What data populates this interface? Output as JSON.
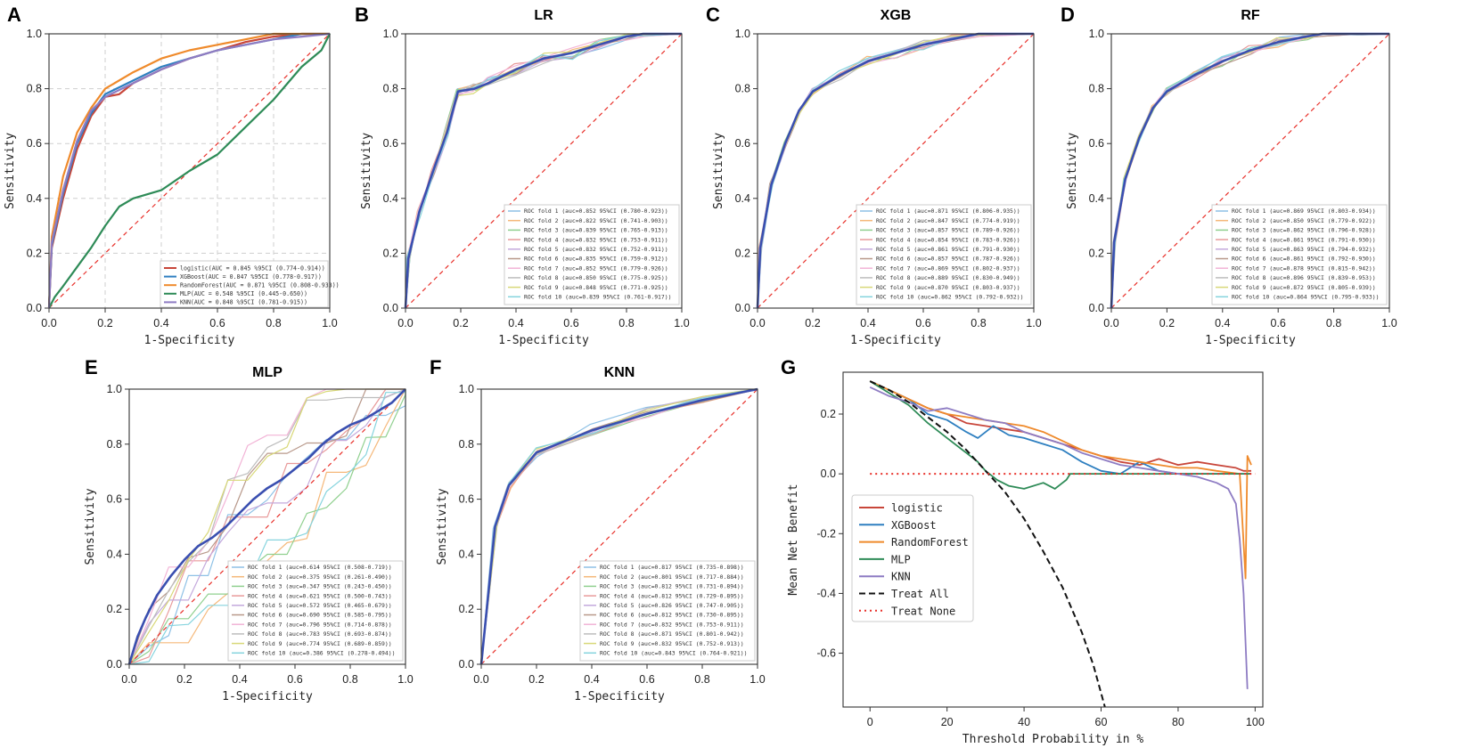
{
  "panel_letters": [
    "A",
    "B",
    "C",
    "D",
    "E",
    "F",
    "G"
  ],
  "axis_labels": {
    "roc_x": "1-Specificity",
    "roc_y": "Sensitivity",
    "dca_x": "Threshold Probability in %",
    "dca_y": "Mean Net Benefit"
  },
  "roc_ticks": [
    "0.0",
    "0.2",
    "0.4",
    "0.6",
    "0.8",
    "1.0"
  ],
  "dca_x_ticks": [
    "0",
    "20",
    "40",
    "60",
    "80",
    "100"
  ],
  "dca_y_ticks": [
    "0.2",
    "0.0",
    "-0.2",
    "-0.4",
    "-0.6"
  ],
  "colors": {
    "logistic": "#c8463a",
    "xgboost": "#2e7fc0",
    "randomforest": "#ef8a2b",
    "mlp": "#2e8b57",
    "knn": "#8e7cc3",
    "mean": "#3a4fb0",
    "diagonal": "#e8302a",
    "treat_all": "#111111",
    "treat_none": "#e8302a",
    "fold_colors": [
      "#8ec1e6",
      "#f5b87a",
      "#90d08f",
      "#e89a9a",
      "#c4a9dc",
      "#b8988a",
      "#f2b3d6",
      "#bdbdbd",
      "#d8d878",
      "#86d4de"
    ]
  },
  "chart_data": [
    {
      "panel": "A",
      "type": "line",
      "title": "",
      "xlabel": "1-Specificity",
      "ylabel": "Sensitivity",
      "xlim": [
        0,
        1
      ],
      "ylim": [
        0,
        1
      ],
      "grid": true,
      "series": [
        {
          "name": "logistic",
          "label": "logistic(AUC = 0.845 %95CI (0.774-0.914))",
          "color_key": "logistic",
          "x": [
            0,
            0.01,
            0.05,
            0.1,
            0.15,
            0.2,
            0.25,
            0.3,
            0.4,
            0.5,
            0.6,
            0.7,
            0.8,
            0.9,
            1.0
          ],
          "y": [
            0,
            0.22,
            0.4,
            0.58,
            0.7,
            0.77,
            0.78,
            0.82,
            0.87,
            0.91,
            0.94,
            0.97,
            0.99,
            1.0,
            1.0
          ]
        },
        {
          "name": "XGBoost",
          "label": "XGBoost(AUC = 0.847 %95CI (0.778-0.917))",
          "color_key": "xgboost",
          "x": [
            0,
            0.01,
            0.05,
            0.1,
            0.15,
            0.2,
            0.3,
            0.4,
            0.5,
            0.6,
            0.7,
            0.8,
            0.9,
            1.0
          ],
          "y": [
            0,
            0.23,
            0.42,
            0.6,
            0.71,
            0.78,
            0.83,
            0.88,
            0.91,
            0.94,
            0.96,
            0.98,
            1.0,
            1.0
          ]
        },
        {
          "name": "RandomForest",
          "label": "RandomForest(AUC = 0.871 %95CI (0.808-0.933))",
          "color_key": "randomforest",
          "x": [
            0,
            0.01,
            0.05,
            0.1,
            0.15,
            0.2,
            0.3,
            0.4,
            0.5,
            0.6,
            0.7,
            0.8,
            0.9,
            1.0
          ],
          "y": [
            0,
            0.26,
            0.48,
            0.64,
            0.73,
            0.8,
            0.86,
            0.91,
            0.94,
            0.96,
            0.98,
            1.0,
            1.0,
            1.0
          ]
        },
        {
          "name": "MLP",
          "label": "MLP(AUC = 0.548 %95CI (0.445-0.650))",
          "color_key": "mlp",
          "x": [
            0,
            0.02,
            0.05,
            0.1,
            0.15,
            0.2,
            0.25,
            0.3,
            0.4,
            0.5,
            0.6,
            0.7,
            0.8,
            0.9,
            0.97,
            1.0
          ],
          "y": [
            0,
            0.04,
            0.08,
            0.15,
            0.22,
            0.3,
            0.37,
            0.4,
            0.43,
            0.5,
            0.56,
            0.66,
            0.76,
            0.88,
            0.94,
            1.0
          ]
        },
        {
          "name": "KNN",
          "label": "KNN(AUC = 0.848 %95CI (0.781-0.915))",
          "color_key": "knn",
          "x": [
            0,
            0.01,
            0.05,
            0.1,
            0.15,
            0.2,
            0.3,
            0.4,
            0.5,
            0.6,
            0.7,
            0.8,
            0.9,
            1.0
          ],
          "y": [
            0,
            0.24,
            0.43,
            0.61,
            0.72,
            0.77,
            0.82,
            0.87,
            0.91,
            0.94,
            0.96,
            0.98,
            0.99,
            1.0
          ]
        }
      ]
    },
    {
      "panel": "B",
      "type": "line",
      "title": "LR",
      "xlabel": "1-Specificity",
      "ylabel": "Sensitivity",
      "xlim": [
        0,
        1
      ],
      "ylim": [
        0,
        1
      ],
      "folds": [
        "ROC fold 1 (auc=0.852 95%CI (0.780-0.923))",
        "ROC fold 2 (auc=0.822 95%CI (0.741-0.903))",
        "ROC fold 3 (auc=0.839 95%CI (0.765-0.913))",
        "ROC fold 4 (auc=0.832 95%CI (0.753-0.911))",
        "ROC fold 5 (auc=0.832 95%CI (0.752-0.911))",
        "ROC fold 6 (auc=0.835 95%CI (0.759-0.912))",
        "ROC fold 7 (auc=0.852 95%CI (0.779-0.926))",
        "ROC fold 8 (auc=0.850 95%CI (0.775-0.925))",
        "ROC fold 9 (auc=0.848 95%CI (0.771-0.925))",
        "ROC fold 10 (auc=0.839 95%CI (0.761-0.917))"
      ],
      "mean_x": [
        0,
        0.01,
        0.05,
        0.1,
        0.15,
        0.19,
        0.25,
        0.3,
        0.4,
        0.5,
        0.6,
        0.7,
        0.8,
        0.86,
        1.0
      ],
      "mean_y": [
        0,
        0.18,
        0.35,
        0.5,
        0.64,
        0.79,
        0.8,
        0.82,
        0.87,
        0.91,
        0.93,
        0.96,
        0.99,
        1.0,
        1.0
      ]
    },
    {
      "panel": "C",
      "type": "line",
      "title": "XGB",
      "xlabel": "1-Specificity",
      "ylabel": "Sensitivity",
      "xlim": [
        0,
        1
      ],
      "ylim": [
        0,
        1
      ],
      "folds": [
        "ROC fold 1 (auc=0.871 95%CI (0.806-0.935))",
        "ROC fold 2 (auc=0.847 95%CI (0.774-0.919))",
        "ROC fold 3 (auc=0.857 95%CI (0.789-0.926))",
        "ROC fold 4 (auc=0.854 95%CI (0.783-0.926))",
        "ROC fold 5 (auc=0.861 95%CI (0.791-0.930))",
        "ROC fold 6 (auc=0.857 95%CI (0.787-0.926))",
        "ROC fold 7 (auc=0.869 95%CI (0.802-0.937))",
        "ROC fold 8 (auc=0.889 95%CI (0.830-0.949))",
        "ROC fold 9 (auc=0.870 95%CI (0.803-0.937))",
        "ROC fold 10 (auc=0.862 95%CI (0.792-0.932))"
      ],
      "mean_x": [
        0,
        0.01,
        0.05,
        0.1,
        0.15,
        0.2,
        0.3,
        0.4,
        0.5,
        0.6,
        0.7,
        0.8,
        0.9,
        1.0
      ],
      "mean_y": [
        0,
        0.22,
        0.45,
        0.6,
        0.72,
        0.79,
        0.85,
        0.9,
        0.93,
        0.96,
        0.98,
        1.0,
        1.0,
        1.0
      ]
    },
    {
      "panel": "D",
      "type": "line",
      "title": "RF",
      "xlabel": "1-Specificity",
      "ylabel": "Sensitivity",
      "xlim": [
        0,
        1
      ],
      "ylim": [
        0,
        1
      ],
      "folds": [
        "ROC fold 1 (auc=0.869 95%CI (0.803-0.934))",
        "ROC fold 2 (auc=0.850 95%CI (0.779-0.922))",
        "ROC fold 3 (auc=0.862 95%CI (0.796-0.928))",
        "ROC fold 4 (auc=0.861 95%CI (0.791-0.930))",
        "ROC fold 5 (auc=0.863 95%CI (0.794-0.932))",
        "ROC fold 6 (auc=0.861 95%CI (0.792-0.930))",
        "ROC fold 7 (auc=0.878 95%CI (0.815-0.942))",
        "ROC fold 8 (auc=0.896 95%CI (0.839-0.953))",
        "ROC fold 9 (auc=0.872 95%CI (0.805-0.939))",
        "ROC fold 10 (auc=0.864 95%CI (0.795-0.933))"
      ],
      "mean_x": [
        0,
        0.01,
        0.05,
        0.1,
        0.15,
        0.2,
        0.3,
        0.4,
        0.5,
        0.6,
        0.7,
        0.76,
        0.9,
        1.0
      ],
      "mean_y": [
        0,
        0.24,
        0.47,
        0.62,
        0.73,
        0.79,
        0.85,
        0.9,
        0.94,
        0.97,
        0.99,
        1.0,
        1.0,
        1.0
      ]
    },
    {
      "panel": "E",
      "type": "line",
      "title": "MLP",
      "xlabel": "1-Specificity",
      "ylabel": "Sensitivity",
      "xlim": [
        0,
        1
      ],
      "ylim": [
        0,
        1
      ],
      "folds": [
        "ROC fold 1 (auc=0.614 95%CI (0.508-0.719))",
        "ROC fold 2 (auc=0.375 95%CI (0.261-0.490))",
        "ROC fold 3 (auc=0.347 95%CI (0.243-0.450))",
        "ROC fold 4 (auc=0.621 95%CI (0.500-0.743))",
        "ROC fold 5 (auc=0.572 95%CI (0.465-0.679))",
        "ROC fold 6 (auc=0.690 95%CI (0.585-0.795))",
        "ROC fold 7 (auc=0.796 95%CI (0.714-0.878))",
        "ROC fold 8 (auc=0.783 95%CI (0.693-0.874))",
        "ROC fold 9 (auc=0.774 95%CI (0.689-0.859))",
        "ROC fold 10 (auc=0.386 95%CI (0.278-0.494))"
      ],
      "mean_x": [
        0,
        0.03,
        0.06,
        0.1,
        0.15,
        0.2,
        0.25,
        0.3,
        0.35,
        0.4,
        0.45,
        0.5,
        0.55,
        0.6,
        0.65,
        0.7,
        0.75,
        0.8,
        0.85,
        0.9,
        0.95,
        1.0
      ],
      "mean_y": [
        0,
        0.1,
        0.17,
        0.25,
        0.32,
        0.38,
        0.43,
        0.46,
        0.5,
        0.55,
        0.6,
        0.64,
        0.67,
        0.71,
        0.75,
        0.8,
        0.84,
        0.87,
        0.89,
        0.92,
        0.95,
        1.0
      ]
    },
    {
      "panel": "F",
      "type": "line",
      "title": "KNN",
      "xlabel": "1-Specificity",
      "ylabel": "Sensitivity",
      "xlim": [
        0,
        1
      ],
      "ylim": [
        0,
        1
      ],
      "folds": [
        "ROC fold 1 (auc=0.817 95%CI (0.735-0.898))",
        "ROC fold 2 (auc=0.801 95%CI (0.717-0.884))",
        "ROC fold 3 (auc=0.812 95%CI (0.731-0.894))",
        "ROC fold 4 (auc=0.812 95%CI (0.729-0.895))",
        "ROC fold 5 (auc=0.826 95%CI (0.747-0.905))",
        "ROC fold 6 (auc=0.812 95%CI (0.730-0.895))",
        "ROC fold 7 (auc=0.832 95%CI (0.753-0.911))",
        "ROC fold 8 (auc=0.871 95%CI (0.801-0.942))",
        "ROC fold 9 (auc=0.832 95%CI (0.752-0.913))",
        "ROC fold 10 (auc=0.843 95%CI (0.764-0.921))"
      ],
      "mean_x": [
        0,
        0.05,
        0.1,
        0.2,
        0.4,
        0.6,
        0.8,
        1.0
      ],
      "mean_y": [
        0,
        0.5,
        0.65,
        0.77,
        0.85,
        0.91,
        0.96,
        1.0
      ]
    },
    {
      "panel": "G",
      "type": "line",
      "title": "",
      "xlabel": "Threshold Probability in %",
      "ylabel": "Mean Net Benefit",
      "xlim": [
        -7,
        102
      ],
      "ylim": [
        -0.78,
        0.34
      ],
      "series": [
        {
          "name": "logistic",
          "color_key": "logistic",
          "x": [
            0,
            5,
            10,
            15,
            20,
            25,
            30,
            35,
            40,
            45,
            50,
            55,
            60,
            65,
            70,
            75,
            80,
            85,
            90,
            95,
            97,
            99
          ],
          "y": [
            0.31,
            0.28,
            0.25,
            0.22,
            0.2,
            0.17,
            0.16,
            0.15,
            0.14,
            0.12,
            0.1,
            0.08,
            0.06,
            0.04,
            0.03,
            0.05,
            0.03,
            0.04,
            0.03,
            0.02,
            0.01,
            0.01
          ]
        },
        {
          "name": "XGBoost",
          "color_key": "xgboost",
          "x": [
            0,
            5,
            10,
            15,
            20,
            25,
            28,
            32,
            36,
            40,
            45,
            50,
            55,
            60,
            65,
            70,
            75,
            80,
            85,
            99
          ],
          "y": [
            0.31,
            0.28,
            0.25,
            0.2,
            0.18,
            0.14,
            0.12,
            0.16,
            0.13,
            0.12,
            0.1,
            0.08,
            0.04,
            0.01,
            0.0,
            0.04,
            0.01,
            0.0,
            0.0,
            0.0
          ]
        },
        {
          "name": "RandomForest",
          "color_key": "randomforest",
          "x": [
            0,
            5,
            10,
            15,
            20,
            25,
            30,
            35,
            40,
            45,
            50,
            55,
            60,
            65,
            70,
            75,
            80,
            85,
            90,
            96,
            97.5,
            98,
            99
          ],
          "y": [
            0.31,
            0.28,
            0.25,
            0.22,
            0.2,
            0.19,
            0.18,
            0.17,
            0.16,
            0.14,
            0.11,
            0.08,
            0.06,
            0.05,
            0.04,
            0.03,
            0.02,
            0.02,
            0.01,
            0.0,
            -0.35,
            0.06,
            0.03
          ]
        },
        {
          "name": "MLP",
          "color_key": "mlp",
          "x": [
            0,
            5,
            10,
            15,
            20,
            25,
            28,
            30,
            33,
            36,
            40,
            45,
            48,
            50,
            51,
            52,
            99
          ],
          "y": [
            0.31,
            0.27,
            0.23,
            0.17,
            0.12,
            0.07,
            0.04,
            0.01,
            -0.02,
            -0.04,
            -0.05,
            -0.03,
            -0.05,
            -0.03,
            -0.02,
            0.0,
            0.0
          ]
        },
        {
          "name": "KNN",
          "color_key": "knn",
          "x": [
            0,
            5,
            10,
            15,
            20,
            25,
            30,
            35,
            40,
            45,
            50,
            55,
            60,
            65,
            70,
            75,
            80,
            85,
            90,
            93,
            95,
            96,
            97,
            98
          ],
          "y": [
            0.29,
            0.26,
            0.24,
            0.21,
            0.22,
            0.2,
            0.18,
            0.17,
            0.14,
            0.12,
            0.1,
            0.07,
            0.05,
            0.03,
            0.02,
            0.01,
            0.0,
            -0.01,
            -0.03,
            -0.05,
            -0.1,
            -0.22,
            -0.4,
            -0.72
          ]
        },
        {
          "name": "Treat All",
          "color_key": "treat_all",
          "dash": "7,4",
          "x": [
            0,
            5,
            10,
            15,
            20,
            25,
            30,
            35,
            40,
            45,
            50,
            55,
            58,
            61
          ],
          "y": [
            0.31,
            0.28,
            0.24,
            0.19,
            0.14,
            0.08,
            0.01,
            -0.06,
            -0.15,
            -0.26,
            -0.38,
            -0.53,
            -0.64,
            -0.78
          ]
        },
        {
          "name": "Treat None",
          "color_key": "treat_none",
          "dash": "2,4",
          "x": [
            0,
            100
          ],
          "y": [
            0,
            0
          ]
        }
      ]
    }
  ]
}
